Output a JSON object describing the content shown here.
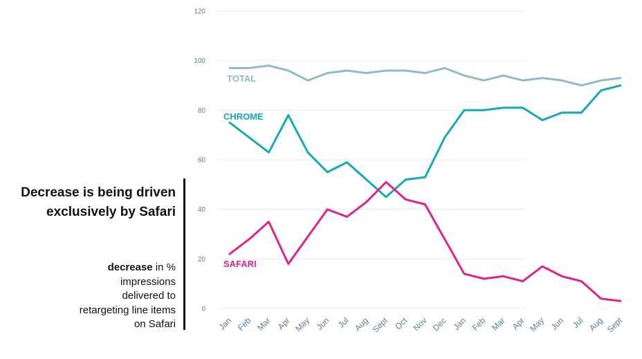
{
  "chart_data": {
    "type": "line",
    "title": "Decrease is being driven exclusively by Safari",
    "caption": {
      "bold": "decrease",
      "rest": " in % impressions delivered to retargeting line items on Safari"
    },
    "categories": [
      "Jan",
      "Feb",
      "Mar",
      "Apr",
      "May",
      "Jun",
      "Jul",
      "Aug",
      "Sept",
      "Oct",
      "Nov",
      "Dec",
      "Jan",
      "Feb",
      "Mar",
      "Apr",
      "May",
      "Jun",
      "Jul",
      "Aug",
      "Sept"
    ],
    "yticks": [
      0,
      20,
      40,
      60,
      80,
      100,
      120
    ],
    "ylim": [
      0,
      120
    ],
    "xlabel": "",
    "ylabel": "",
    "grid": true,
    "series": [
      {
        "name": "TOTAL",
        "color": "#8fbac6",
        "values": [
          97,
          97,
          98,
          96,
          92,
          95,
          96,
          95,
          96,
          96,
          95,
          97,
          94,
          92,
          94,
          92,
          93,
          92,
          90,
          92,
          93
        ]
      },
      {
        "name": "CHROME",
        "color": "#14a9b5",
        "values": [
          75,
          69,
          63,
          78,
          63,
          55,
          59,
          52,
          45,
          52,
          53,
          69,
          80,
          80,
          81,
          81,
          76,
          79,
          79,
          88,
          90
        ]
      },
      {
        "name": "SAFARI",
        "color": "#e0218a",
        "values": [
          22,
          28,
          35,
          18,
          29,
          40,
          37,
          43,
          51,
          44,
          42,
          28,
          14,
          12,
          13,
          11,
          17,
          13,
          11,
          4,
          3
        ]
      }
    ]
  }
}
